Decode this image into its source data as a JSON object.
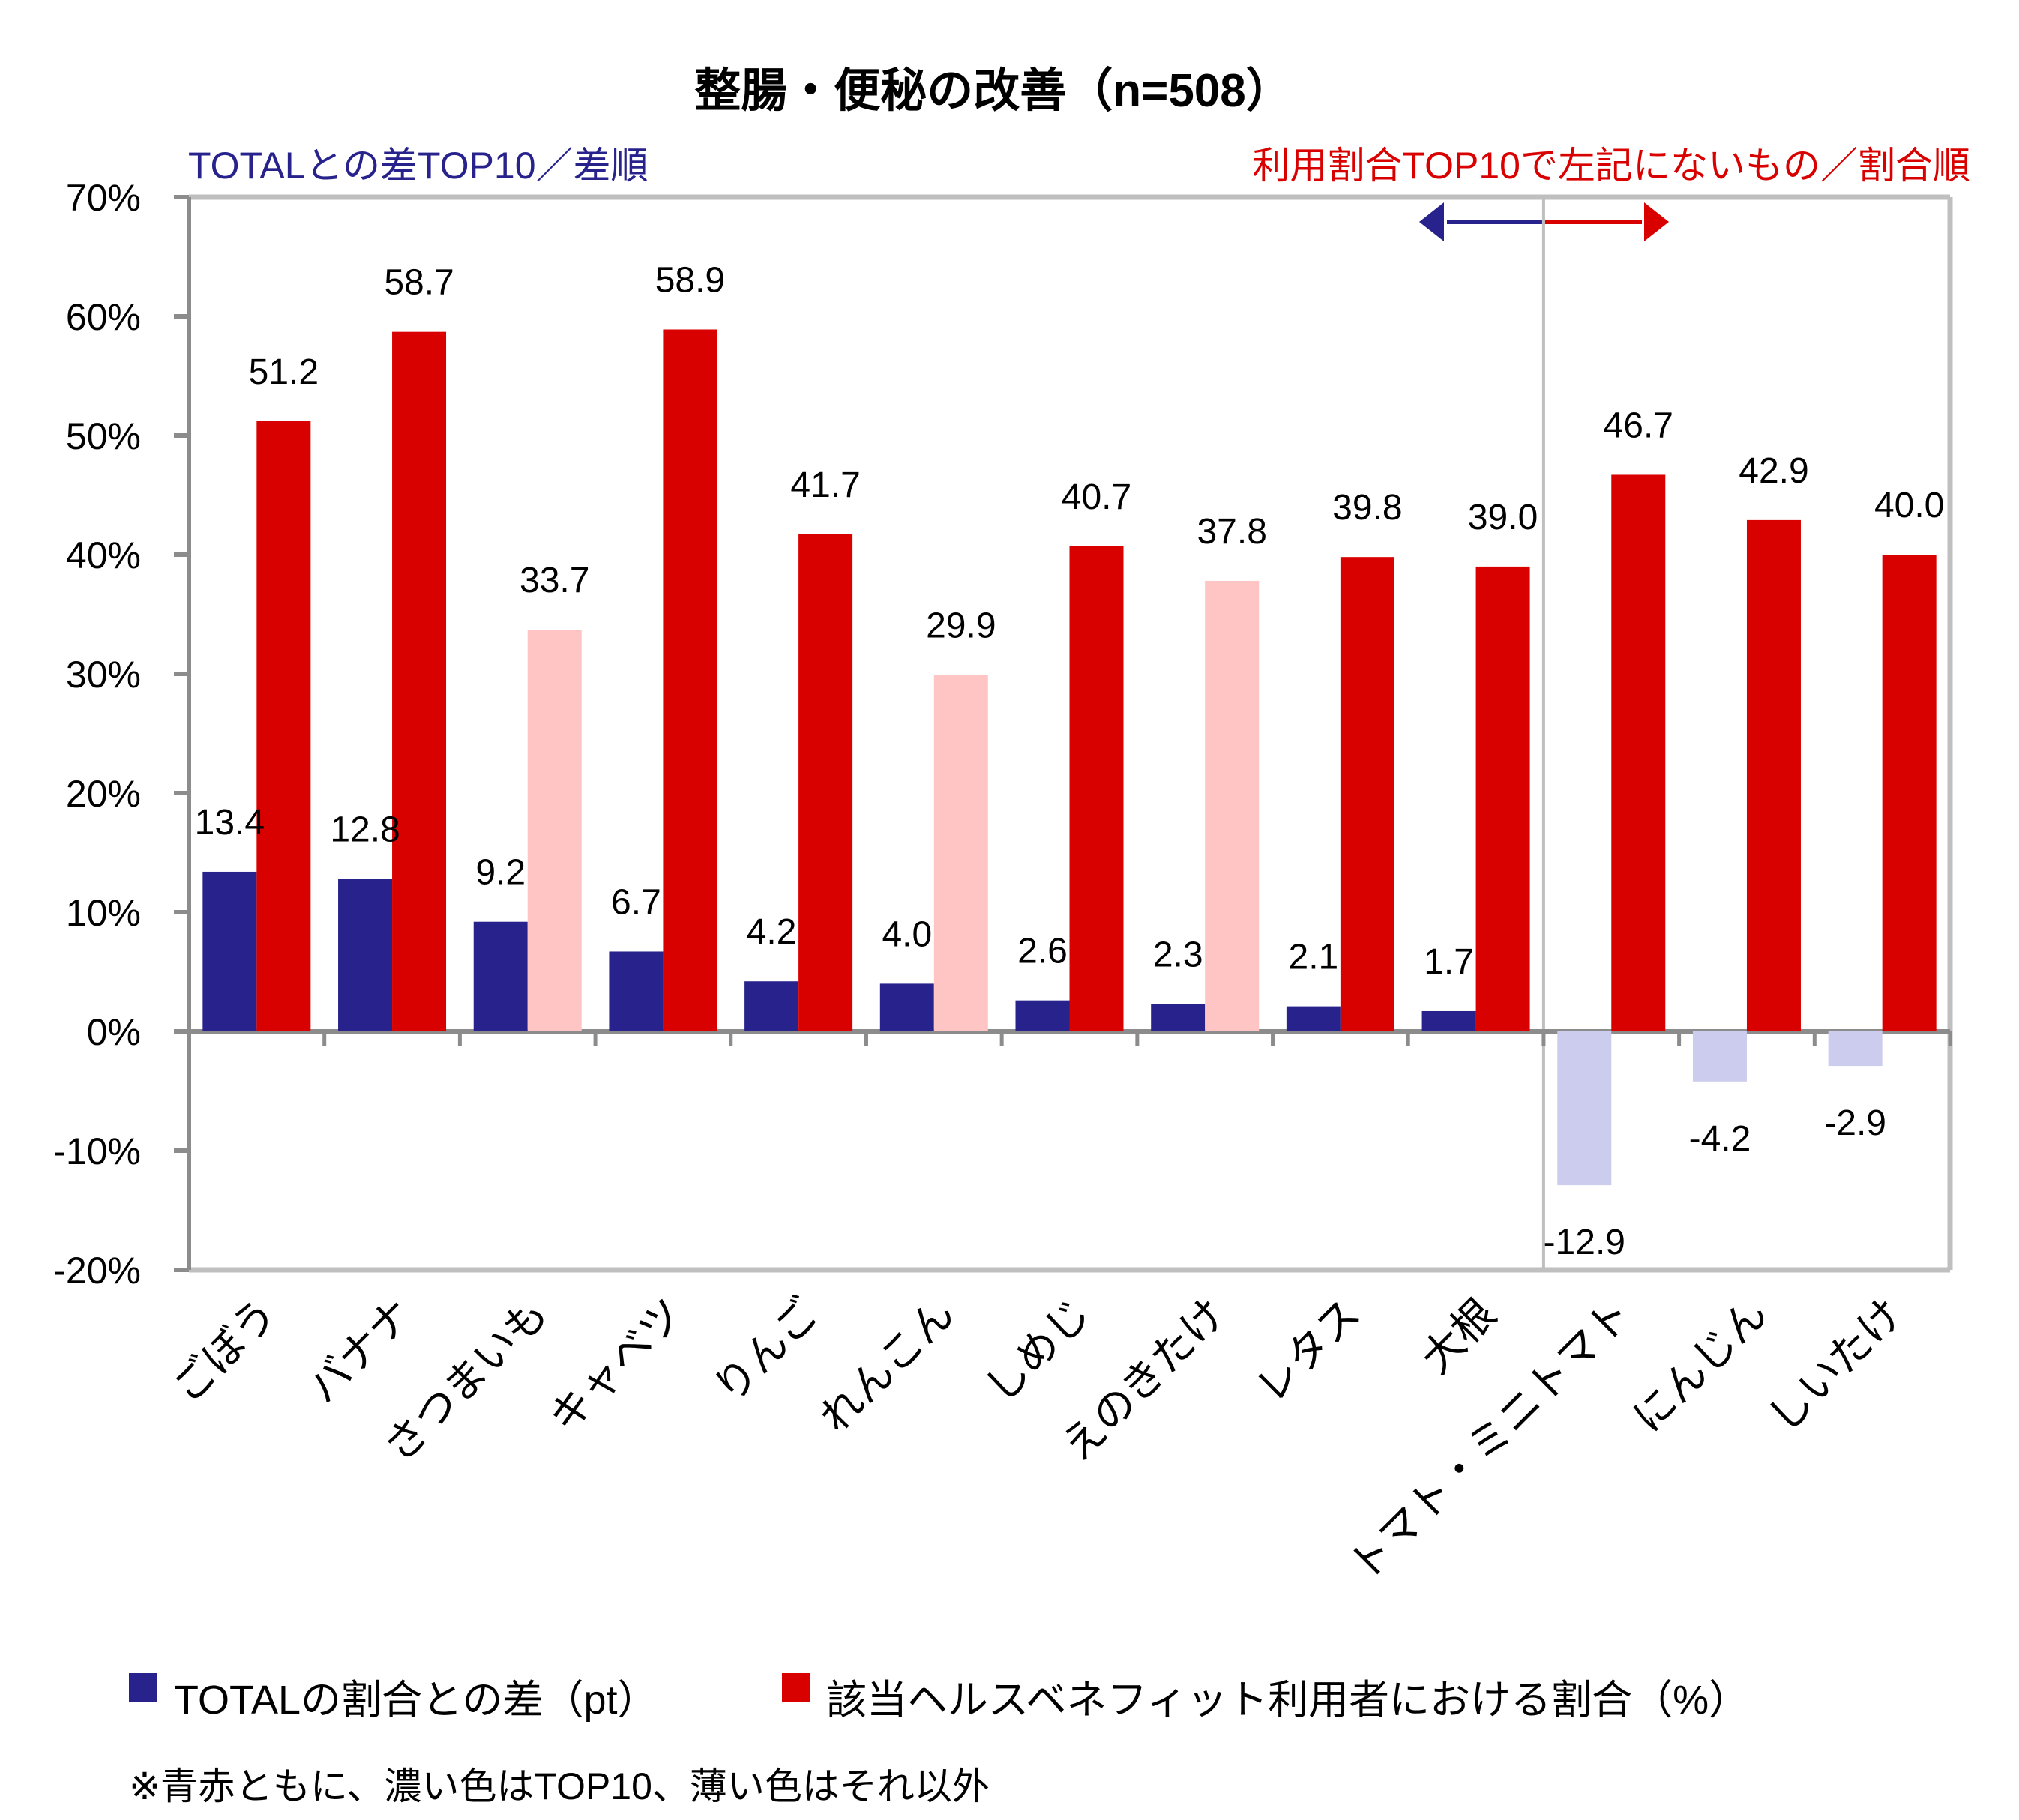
{
  "chart_data": {
    "type": "bar",
    "title": "整腸・便秘の改善（n=508）",
    "subtitle_left": "TOTALとの差TOP10／差順",
    "subtitle_right": "利用割合TOP10で左記にないもの／割合順",
    "xlabel": "",
    "ylabel": "",
    "ylim": [
      -20,
      70
    ],
    "yticks": [
      70,
      60,
      50,
      40,
      30,
      20,
      10,
      0,
      -10,
      -20
    ],
    "ytick_labels": [
      "70%",
      "60%",
      "50%",
      "40%",
      "30%",
      "20%",
      "10%",
      "0%",
      "-10%",
      "-20%"
    ],
    "grid": false,
    "categories": [
      "ごぼう",
      "バナナ",
      "さつまいも",
      "キャベツ",
      "りんご",
      "れんこん",
      "しめじ",
      "えのきたけ",
      "レタス",
      "大根",
      "トマト・ミニトマト",
      "にんじん",
      "しいたけ"
    ],
    "series": [
      {
        "name": "TOTALの割合との差（pt）",
        "color": "#28238C",
        "light_color": "#CCCCEE",
        "values": [
          13.4,
          12.8,
          9.2,
          6.7,
          4.2,
          4.0,
          2.6,
          2.3,
          2.1,
          1.7,
          -12.9,
          -4.2,
          -2.9
        ],
        "labels": [
          "13.4",
          "12.8",
          "9.2",
          "6.7",
          "4.2",
          "4.0",
          "2.6",
          "2.3",
          "2.1",
          "1.7",
          "-12.9",
          "-4.2",
          "-2.9"
        ],
        "top10": [
          true,
          true,
          true,
          true,
          true,
          true,
          true,
          true,
          true,
          true,
          false,
          false,
          false
        ]
      },
      {
        "name": "該当ヘルスベネフィット利用者における割合（%）",
        "color": "#D90000",
        "light_color": "#FFC4C4",
        "values": [
          51.2,
          58.7,
          33.7,
          58.9,
          41.7,
          29.9,
          40.7,
          37.8,
          39.8,
          39.0,
          46.7,
          42.9,
          40.0
        ],
        "labels": [
          "51.2",
          "58.7",
          "33.7",
          "58.9",
          "41.7",
          "29.9",
          "40.7",
          "37.8",
          "39.8",
          "39.0",
          "46.7",
          "42.9",
          "40.0"
        ],
        "top10": [
          true,
          true,
          false,
          true,
          true,
          false,
          true,
          false,
          true,
          true,
          true,
          true,
          true
        ]
      }
    ],
    "section_divider_after_index": 9,
    "legend": {
      "placement": "bottom-left",
      "items": [
        {
          "label": "TOTALの割合との差（pt）",
          "color": "#28238C"
        },
        {
          "label": "該当ヘルスベネフィット利用者における割合（%）",
          "color": "#D90000"
        }
      ]
    },
    "note": "※青赤ともに、濃い色はTOP10、薄い色はそれ以外",
    "arrow_colors": {
      "left": "#28238C",
      "right": "#D90000"
    }
  }
}
